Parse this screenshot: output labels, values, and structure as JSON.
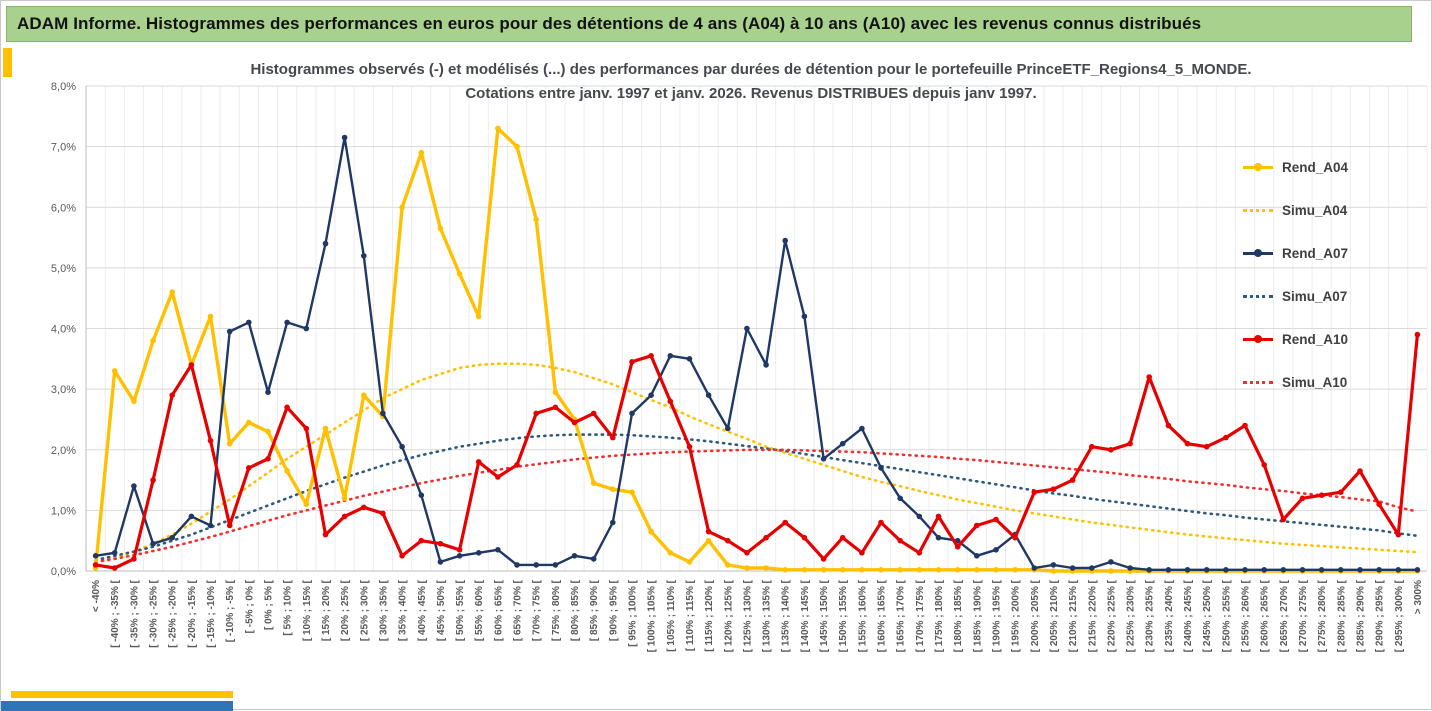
{
  "banner": {
    "title": "ADAM Informe. Histogrammes des performances en euros pour des détentions de 4 ans (A04) à 10 ans (A10) avec les revenus connus distribués",
    "background_color": "#A9D18E"
  },
  "accents": {
    "gold": "#FFC000",
    "blue": "#2E75B6"
  },
  "chart_data": {
    "type": "line",
    "title_line1": "Histogrammes observés (-) et modélisés (...) des performances par durées de détention pour le portefeuille PrinceETF_Regions4_5_MONDE.",
    "title_line2": "Cotations entre janv. 1997 et janv. 2026. Revenus DISTRIBUES depuis janv 1997.",
    "xlabel": "",
    "ylabel": "",
    "ylim": [
      0,
      8
    ],
    "grid": true,
    "legend_position": "right",
    "ytick_labels": [
      "0,0%",
      "1,0%",
      "2,0%",
      "3,0%",
      "4,0%",
      "5,0%",
      "6,0%",
      "7,0%",
      "8,0%"
    ],
    "categories": [
      "< -40%",
      "[ -40% ; -35% [",
      "[ -35% ; -30% [",
      "[ -30% ; -25% [",
      "[ -25% ; -20% [",
      "[ -20% ; -15% [",
      "[ -15% ; -10% [",
      "[ -10% ; -5% [",
      "[ -5% ; 0% [",
      "[ 0% ; 5% [",
      "[ 5% ; 10% [",
      "[ 10% ; 15% [",
      "[ 15% ; 20% [",
      "[ 20% ; 25% [",
      "[ 25% ; 30% [",
      "[ 30% ; 35% [",
      "[ 35% ; 40% [",
      "[ 40% ; 45% [",
      "[ 45% ; 50% [",
      "[ 50% ; 55% [",
      "[ 55% ; 60% [",
      "[ 60% ; 65% [",
      "[ 65% ; 70% [",
      "[ 70% ; 75% [",
      "[ 75% ; 80% [",
      "[ 80% ; 85% [",
      "[ 85% ; 90% [",
      "[ 90% ; 95% [",
      "[ 95% ; 100% [",
      "[ 100% ; 105% [",
      "[ 105% ; 110% [",
      "[ 110% ; 115% [",
      "[ 115% ; 120% [",
      "[ 120% ; 125% [",
      "[ 125% ; 130% [",
      "[ 130% ; 135% [",
      "[ 135% ; 140% [",
      "[ 140% ; 145% [",
      "[ 145% ; 150% [",
      "[ 150% ; 155% [",
      "[ 155% ; 160% [",
      "[ 160% ; 165% [",
      "[ 165% ; 170% [",
      "[ 170% ; 175% [",
      "[ 175% ; 180% [",
      "[ 180% ; 185% [",
      "[ 185% ; 190% [",
      "[ 190% ; 195% [",
      "[ 195% ; 200% [",
      "[ 200% ; 205% [",
      "[ 205% ; 210% [",
      "[ 210% ; 215% [",
      "[ 215% ; 220% [",
      "[ 220% ; 225% [",
      "[ 225% ; 230% [",
      "[ 230% ; 235% [",
      "[ 235% ; 240% [",
      "[ 240% ; 245% [",
      "[ 245% ; 250% [",
      "[ 250% ; 255% [",
      "[ 255% ; 260% [",
      "[ 260% ; 265% [",
      "[ 265% ; 270% [",
      "[ 270% ; 275% [",
      "[ 275% ; 280% [",
      "[ 280% ; 285% [",
      "[ 285% ; 290% [",
      "[ 290% ; 295% [",
      "[ 295% ; 300% [",
      "> 300%"
    ],
    "series": [
      {
        "name": "Rend_A04",
        "style": "solid",
        "marker": true,
        "color": "#FFC000",
        "width": 3.4,
        "values": [
          0.05,
          3.3,
          2.8,
          3.8,
          4.6,
          3.4,
          4.2,
          2.1,
          2.45,
          2.3,
          1.65,
          1.1,
          2.35,
          1.2,
          2.9,
          2.55,
          6.0,
          6.9,
          5.65,
          4.9,
          4.2,
          7.3,
          7.0,
          5.8,
          2.95,
          2.5,
          1.45,
          1.35,
          1.3,
          0.65,
          0.3,
          0.15,
          0.5,
          0.1,
          0.05,
          0.05,
          0.02,
          0.02,
          0.02,
          0.02,
          0.02,
          0.02,
          0.02,
          0.02,
          0.02,
          0.02,
          0.02,
          0.02,
          0.02,
          0.02,
          0,
          0,
          0,
          0,
          0,
          0,
          0,
          0,
          0,
          0,
          0,
          0,
          0,
          0,
          0,
          0,
          0,
          0,
          0,
          0
        ]
      },
      {
        "name": "Simu_A04",
        "style": "dotted",
        "marker": false,
        "color": "#FFC000",
        "width": 2.6,
        "values": [
          0.15,
          0.22,
          0.32,
          0.45,
          0.6,
          0.78,
          0.98,
          1.18,
          1.4,
          1.62,
          1.85,
          2.05,
          2.25,
          2.45,
          2.65,
          2.85,
          3.0,
          3.15,
          3.25,
          3.35,
          3.4,
          3.42,
          3.42,
          3.4,
          3.35,
          3.28,
          3.18,
          3.08,
          2.95,
          2.82,
          2.7,
          2.55,
          2.42,
          2.3,
          2.18,
          2.05,
          1.95,
          1.85,
          1.75,
          1.65,
          1.55,
          1.47,
          1.4,
          1.32,
          1.25,
          1.18,
          1.12,
          1.06,
          1.0,
          0.95,
          0.9,
          0.85,
          0.8,
          0.76,
          0.72,
          0.68,
          0.64,
          0.6,
          0.57,
          0.54,
          0.51,
          0.48,
          0.45,
          0.43,
          0.41,
          0.39,
          0.37,
          0.35,
          0.33,
          0.31
        ]
      },
      {
        "name": "Rend_A07",
        "style": "solid",
        "marker": true,
        "color": "#1F3864",
        "width": 2.4,
        "values": [
          0.25,
          0.3,
          1.4,
          0.45,
          0.55,
          0.9,
          0.75,
          3.95,
          4.1,
          2.95,
          4.1,
          4.0,
          5.4,
          7.15,
          5.2,
          2.6,
          2.05,
          1.25,
          0.15,
          0.25,
          0.3,
          0.35,
          0.1,
          0.1,
          0.1,
          0.25,
          0.2,
          0.8,
          2.6,
          2.9,
          3.55,
          3.5,
          2.9,
          2.35,
          4.0,
          3.4,
          5.45,
          4.2,
          1.85,
          2.1,
          2.35,
          1.7,
          1.2,
          0.9,
          0.55,
          0.5,
          0.25,
          0.35,
          0.6,
          0.05,
          0.1,
          0.05,
          0.05,
          0.15,
          0.05,
          0.02,
          0.02,
          0.02,
          0.02,
          0.02,
          0.02,
          0.02,
          0.02,
          0.02,
          0.02,
          0.02,
          0.02,
          0.02,
          0.02,
          0.02
        ]
      },
      {
        "name": "Simu_A07",
        "style": "dotted",
        "marker": false,
        "color": "#2E5A7D",
        "width": 2.6,
        "values": [
          0.18,
          0.25,
          0.32,
          0.4,
          0.5,
          0.6,
          0.72,
          0.84,
          0.96,
          1.08,
          1.2,
          1.32,
          1.43,
          1.54,
          1.64,
          1.74,
          1.83,
          1.91,
          1.98,
          2.05,
          2.1,
          2.15,
          2.19,
          2.22,
          2.24,
          2.25,
          2.25,
          2.25,
          2.24,
          2.22,
          2.2,
          2.17,
          2.14,
          2.1,
          2.06,
          2.02,
          1.98,
          1.93,
          1.88,
          1.83,
          1.78,
          1.73,
          1.68,
          1.63,
          1.58,
          1.53,
          1.48,
          1.43,
          1.38,
          1.33,
          1.28,
          1.24,
          1.19,
          1.15,
          1.11,
          1.07,
          1.03,
          0.99,
          0.95,
          0.92,
          0.88,
          0.85,
          0.82,
          0.79,
          0.76,
          0.73,
          0.7,
          0.67,
          0.62,
          0.58
        ]
      },
      {
        "name": "Rend_A10",
        "style": "solid",
        "marker": true,
        "color": "#E60000",
        "width": 3.2,
        "values": [
          0.1,
          0.05,
          0.2,
          1.5,
          2.9,
          3.4,
          2.15,
          0.75,
          1.7,
          1.85,
          2.7,
          2.35,
          0.6,
          0.9,
          1.05,
          0.95,
          0.25,
          0.5,
          0.45,
          0.35,
          1.8,
          1.55,
          1.75,
          2.6,
          2.7,
          2.45,
          2.6,
          2.2,
          3.45,
          3.55,
          2.8,
          2.05,
          0.65,
          0.5,
          0.3,
          0.55,
          0.8,
          0.55,
          0.2,
          0.55,
          0.3,
          0.8,
          0.5,
          0.3,
          0.9,
          0.4,
          0.75,
          0.85,
          0.55,
          1.3,
          1.35,
          1.5,
          2.05,
          2.0,
          2.1,
          3.2,
          2.4,
          2.1,
          2.05,
          2.2,
          2.4,
          1.75,
          0.85,
          1.2,
          1.25,
          1.3,
          1.65,
          1.1,
          0.6,
          3.9
        ]
      },
      {
        "name": "Simu_A10",
        "style": "dotted",
        "marker": false,
        "color": "#F03030",
        "width": 2.6,
        "values": [
          0.15,
          0.2,
          0.26,
          0.33,
          0.4,
          0.48,
          0.56,
          0.65,
          0.74,
          0.83,
          0.92,
          1.0,
          1.08,
          1.16,
          1.24,
          1.31,
          1.38,
          1.45,
          1.51,
          1.57,
          1.62,
          1.67,
          1.72,
          1.76,
          1.8,
          1.84,
          1.87,
          1.9,
          1.92,
          1.94,
          1.96,
          1.97,
          1.98,
          1.99,
          2.0,
          2.0,
          2.0,
          1.99,
          1.98,
          1.97,
          1.96,
          1.94,
          1.92,
          1.9,
          1.88,
          1.85,
          1.83,
          1.8,
          1.77,
          1.74,
          1.71,
          1.68,
          1.65,
          1.62,
          1.58,
          1.55,
          1.52,
          1.48,
          1.45,
          1.42,
          1.38,
          1.35,
          1.32,
          1.28,
          1.25,
          1.22,
          1.18,
          1.15,
          1.05,
          0.98
        ]
      }
    ]
  }
}
